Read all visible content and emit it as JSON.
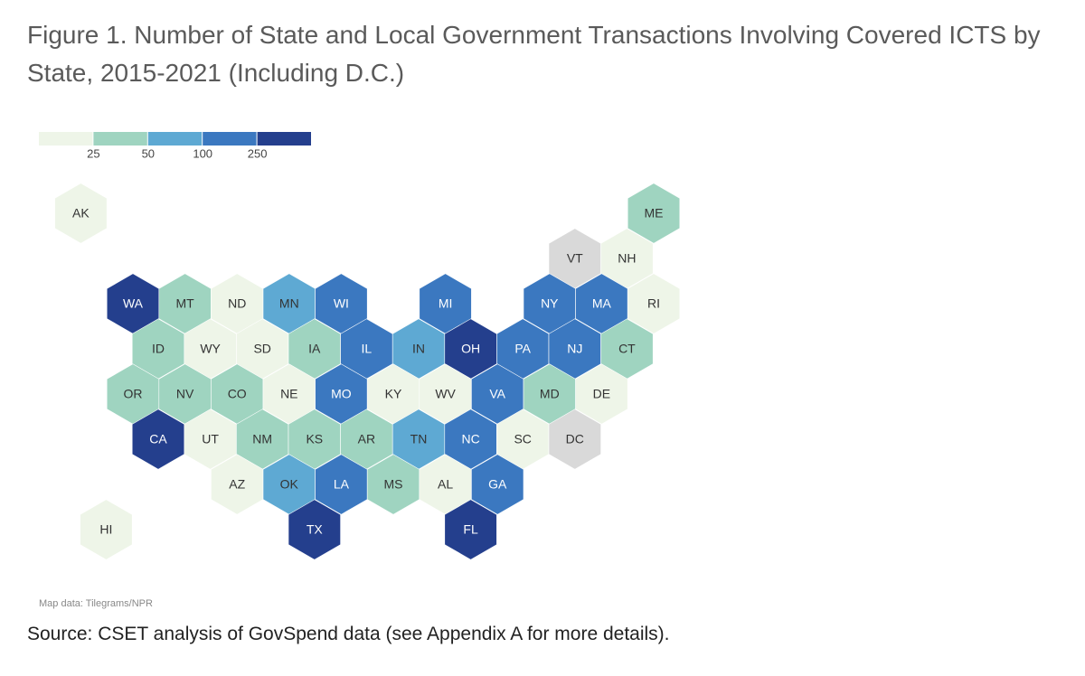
{
  "title": "Figure 1. Number of State and Local Government Transactions Involving Covered ICTS by State, 2015-2021 (Including D.C.)",
  "legend": {
    "colors": [
      "#eef5e8",
      "#9fd4c0",
      "#5ea9d3",
      "#3b78c0",
      "#243f8d"
    ],
    "ticks": [
      25,
      50,
      100,
      250
    ]
  },
  "states": [
    {
      "code": "AK",
      "color": "#eef5e8"
    },
    {
      "code": "ME",
      "color": "#9fd4c0"
    },
    {
      "code": "VT",
      "color": "#d9d9d9"
    },
    {
      "code": "NH",
      "color": "#eef5e8"
    },
    {
      "code": "WA",
      "color": "#243f8d"
    },
    {
      "code": "MT",
      "color": "#9fd4c0"
    },
    {
      "code": "ND",
      "color": "#eef5e8"
    },
    {
      "code": "MN",
      "color": "#5ea9d3"
    },
    {
      "code": "WI",
      "color": "#3b78c0"
    },
    {
      "code": "MI",
      "color": "#3b78c0"
    },
    {
      "code": "NY",
      "color": "#3b78c0"
    },
    {
      "code": "MA",
      "color": "#3b78c0"
    },
    {
      "code": "RI",
      "color": "#eef5e8"
    },
    {
      "code": "ID",
      "color": "#9fd4c0"
    },
    {
      "code": "WY",
      "color": "#eef5e8"
    },
    {
      "code": "SD",
      "color": "#eef5e8"
    },
    {
      "code": "IA",
      "color": "#9fd4c0"
    },
    {
      "code": "IL",
      "color": "#3b78c0"
    },
    {
      "code": "IN",
      "color": "#5ea9d3"
    },
    {
      "code": "OH",
      "color": "#243f8d"
    },
    {
      "code": "PA",
      "color": "#3b78c0"
    },
    {
      "code": "NJ",
      "color": "#3b78c0"
    },
    {
      "code": "CT",
      "color": "#9fd4c0"
    },
    {
      "code": "OR",
      "color": "#9fd4c0"
    },
    {
      "code": "NV",
      "color": "#9fd4c0"
    },
    {
      "code": "CO",
      "color": "#9fd4c0"
    },
    {
      "code": "NE",
      "color": "#eef5e8"
    },
    {
      "code": "MO",
      "color": "#3b78c0"
    },
    {
      "code": "KY",
      "color": "#eef5e8"
    },
    {
      "code": "WV",
      "color": "#eef5e8"
    },
    {
      "code": "VA",
      "color": "#3b78c0"
    },
    {
      "code": "MD",
      "color": "#9fd4c0"
    },
    {
      "code": "DE",
      "color": "#eef5e8"
    },
    {
      "code": "CA",
      "color": "#243f8d"
    },
    {
      "code": "UT",
      "color": "#eef5e8"
    },
    {
      "code": "NM",
      "color": "#9fd4c0"
    },
    {
      "code": "KS",
      "color": "#9fd4c0"
    },
    {
      "code": "AR",
      "color": "#9fd4c0"
    },
    {
      "code": "TN",
      "color": "#5ea9d3"
    },
    {
      "code": "NC",
      "color": "#3b78c0"
    },
    {
      "code": "SC",
      "color": "#eef5e8"
    },
    {
      "code": "DC",
      "color": "#d9d9d9"
    },
    {
      "code": "AZ",
      "color": "#eef5e8"
    },
    {
      "code": "OK",
      "color": "#5ea9d3"
    },
    {
      "code": "LA",
      "color": "#3b78c0"
    },
    {
      "code": "MS",
      "color": "#9fd4c0"
    },
    {
      "code": "AL",
      "color": "#eef5e8"
    },
    {
      "code": "GA",
      "color": "#3b78c0"
    },
    {
      "code": "HI",
      "color": "#eef5e8"
    },
    {
      "code": "TX",
      "color": "#243f8d"
    },
    {
      "code": "FL",
      "color": "#243f8d"
    }
  ],
  "map_credit": "Map data: Tilegrams/NPR",
  "source": "Source: CSET analysis of GovSpend data (see Appendix A for more details)."
}
